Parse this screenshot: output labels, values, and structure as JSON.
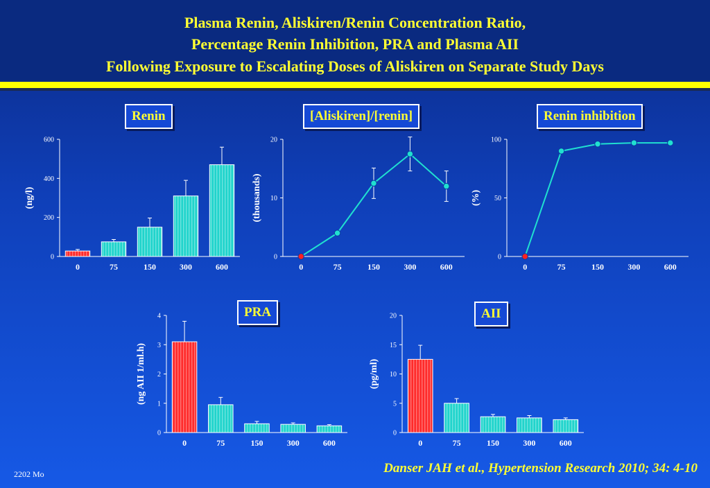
{
  "header": {
    "title_line_1": "Plasma Renin, Aliskiren/Renin Concentration Ratio,",
    "title_line_2": "Percentage Renin Inhibition, PRA and Plasma AII",
    "title_line_3": "Following Exposure to Escalating Doses of Aliskiren on Separate Study Days",
    "title_color": "#ffff33"
  },
  "footer": {
    "code": "2202 Mo",
    "citation": "Danser JAH et al., Hypertension Research 2010; 34: 4-10"
  },
  "colors": {
    "first_bar": "#ff2a2a",
    "other_bars": "#20d4cc",
    "line": "#20e0d0",
    "first_point": "#ff2020",
    "label_text": "#ffff33"
  },
  "chart_data": [
    {
      "id": "renin",
      "type": "bar",
      "label": "Renin",
      "ylabel": "(ng/l)",
      "categories": [
        "0",
        "75",
        "150",
        "300",
        "600"
      ],
      "values": [
        28,
        75,
        150,
        310,
        470
      ],
      "errors": [
        8,
        12,
        47,
        80,
        90
      ],
      "ylim": [
        0,
        600
      ],
      "yticks": [
        "0",
        "200",
        "400",
        "600"
      ],
      "ytick_values": [
        0,
        200,
        400,
        600
      ]
    },
    {
      "id": "ratio",
      "type": "line",
      "label": "[Aliskiren]/[renin]",
      "ylabel": "(thousands)",
      "categories": [
        "0",
        "75",
        "150",
        "300",
        "600"
      ],
      "values": [
        0,
        4,
        12.5,
        17.5,
        12
      ],
      "errors": [
        0,
        0,
        2.6,
        2.9,
        2.6
      ],
      "ylim": [
        0,
        20
      ],
      "yticks": [
        "0",
        "10",
        "20"
      ],
      "ytick_values": [
        0,
        10,
        20
      ]
    },
    {
      "id": "inhibition",
      "type": "line",
      "label": "Renin inhibition",
      "ylabel": "(%)",
      "categories": [
        "0",
        "75",
        "150",
        "300",
        "600"
      ],
      "values": [
        0,
        90,
        96,
        97,
        97
      ],
      "errors": [
        0,
        0,
        0,
        0,
        0
      ],
      "ylim": [
        0,
        100
      ],
      "yticks": [
        "0",
        "50",
        "100"
      ],
      "ytick_values": [
        0,
        50,
        100
      ]
    },
    {
      "id": "pra",
      "type": "bar",
      "label": "PRA",
      "ylabel": "(ng AII 1/ml.h)",
      "categories": [
        "0",
        "75",
        "150",
        "300",
        "600"
      ],
      "values": [
        3.1,
        0.95,
        0.3,
        0.28,
        0.23
      ],
      "errors": [
        0.7,
        0.25,
        0.08,
        0.05,
        0.04
      ],
      "ylim": [
        0,
        4
      ],
      "yticks": [
        "0",
        "1",
        "2",
        "3",
        "4"
      ],
      "ytick_values": [
        0,
        1,
        2,
        3,
        4
      ]
    },
    {
      "id": "aii",
      "type": "bar",
      "label": "AII",
      "ylabel": "(pg/ml)",
      "categories": [
        "0",
        "75",
        "150",
        "300",
        "600"
      ],
      "values": [
        12.5,
        5,
        2.7,
        2.5,
        2.2
      ],
      "errors": [
        2.4,
        0.8,
        0.4,
        0.4,
        0.3
      ],
      "ylim": [
        0,
        20
      ],
      "yticks": [
        "0",
        "5",
        "10",
        "15",
        "20"
      ],
      "ytick_values": [
        0,
        5,
        10,
        15,
        20
      ]
    }
  ]
}
